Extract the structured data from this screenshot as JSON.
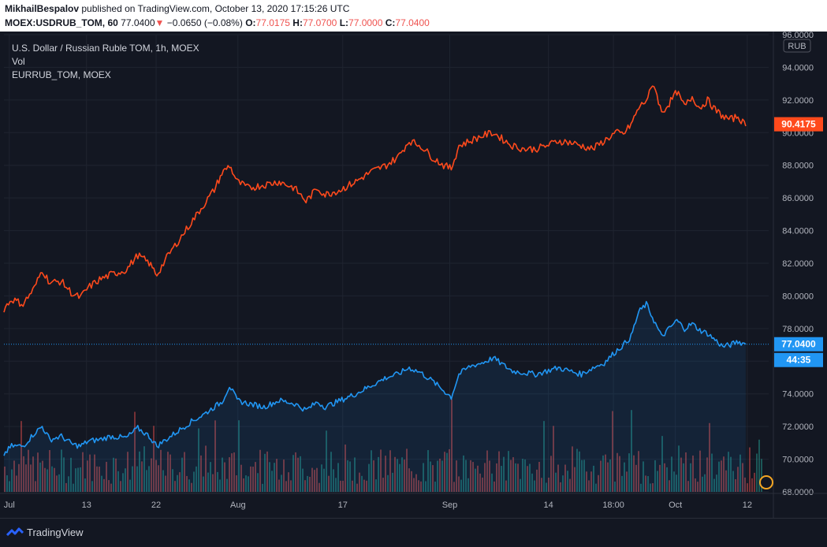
{
  "header": {
    "publisher": "MikhailBespalov",
    "published_text": "published on TradingView.com, October 13, 2020 17:15:26 UTC",
    "symbol": "MOEX:USDRUB_TOM, 60",
    "last": "77.0400",
    "change_arrow": "▼",
    "change": "−0.0650 (−0.08%)",
    "o_label": "O:",
    "o_value": "77.0175",
    "h_label": "H:",
    "h_value": "77.0700",
    "l_label": "L:",
    "l_value": "77.0000",
    "c_label": "C:",
    "c_value": "77.0400"
  },
  "legend": {
    "main": "U.S. Dollar / Russian Ruble TOM, 1h, MOEX",
    "vol": "Vol",
    "compare": "EURRUB_TOM, MOEX"
  },
  "footer": {
    "brand": "TradingView"
  },
  "colors": {
    "eur": "#ff4a1c",
    "usd": "#2196f3",
    "vol_up": "#26a69a",
    "vol_down": "#ef5350",
    "grid": "#1f2430",
    "text": "#b2b5be"
  },
  "chart_data": {
    "type": "line",
    "title": "U.S. Dollar / Russian Ruble TOM, 1h, MOEX",
    "currency_label": "RUB",
    "ylim": [
      68,
      96
    ],
    "y_ticks": [
      "96.0000",
      "94.0000",
      "92.0000",
      "90.0000",
      "88.0000",
      "86.0000",
      "84.0000",
      "82.0000",
      "80.0000",
      "78.0000",
      "76.0000",
      "74.0000",
      "72.0000",
      "70.0000",
      "68.0000"
    ],
    "x_ticks": [
      "Jul",
      "13",
      "22",
      "Aug",
      "17",
      "Sep",
      "14",
      "18:00",
      "Oct",
      "12"
    ],
    "x_tick_pos": [
      0.007,
      0.108,
      0.199,
      0.306,
      0.443,
      0.583,
      0.712,
      0.797,
      0.878,
      0.972
    ],
    "price_labels": {
      "eur": "90.4175",
      "usd": "77.0400",
      "countdown": "44:35"
    },
    "series": [
      {
        "name": "EURRUB_TOM, MOEX",
        "color_key": "eur",
        "x": [
          0,
          0.01,
          0.025,
          0.04,
          0.05,
          0.06,
          0.075,
          0.09,
          0.1,
          0.11,
          0.125,
          0.14,
          0.16,
          0.175,
          0.19,
          0.2,
          0.215,
          0.23,
          0.245,
          0.26,
          0.275,
          0.285,
          0.295,
          0.305,
          0.32,
          0.34,
          0.36,
          0.38,
          0.395,
          0.41,
          0.42,
          0.44,
          0.46,
          0.48,
          0.5,
          0.515,
          0.53,
          0.545,
          0.56,
          0.575,
          0.585,
          0.595,
          0.61,
          0.625,
          0.64,
          0.655,
          0.665,
          0.68,
          0.695,
          0.71,
          0.725,
          0.74,
          0.755,
          0.77,
          0.785,
          0.8,
          0.81,
          0.82,
          0.83,
          0.84,
          0.85,
          0.86,
          0.87,
          0.88,
          0.89,
          0.9,
          0.91,
          0.92,
          0.93,
          0.94,
          0.95,
          0.96,
          0.97
        ],
        "values": [
          79.2,
          79.8,
          79.5,
          80.5,
          81.6,
          80.8,
          80.9,
          80.1,
          79.9,
          80.5,
          81.0,
          81.3,
          81.6,
          82.5,
          82.0,
          81.3,
          82.5,
          83.5,
          84.5,
          85.5,
          86.5,
          87.5,
          88.0,
          87.0,
          86.6,
          86.8,
          87.0,
          86.6,
          85.8,
          86.6,
          86.2,
          86.5,
          87.0,
          87.6,
          88.0,
          88.5,
          89.5,
          89.2,
          88.5,
          88.0,
          87.8,
          89.2,
          89.5,
          89.8,
          90.0,
          89.5,
          89.2,
          89.0,
          89.0,
          89.2,
          89.5,
          89.4,
          89.2,
          89.0,
          89.5,
          90.0,
          89.9,
          90.5,
          91.5,
          92.0,
          93.0,
          91.2,
          91.8,
          92.5,
          91.6,
          92.2,
          91.5,
          92.0,
          91.4,
          91.0,
          90.8,
          91.0,
          90.4
        ]
      },
      {
        "name": "U.S. Dollar / Russian Ruble TOM",
        "color_key": "usd",
        "x": [
          0,
          0.01,
          0.025,
          0.04,
          0.05,
          0.06,
          0.075,
          0.09,
          0.1,
          0.11,
          0.125,
          0.14,
          0.16,
          0.175,
          0.19,
          0.2,
          0.215,
          0.23,
          0.245,
          0.26,
          0.275,
          0.285,
          0.295,
          0.305,
          0.32,
          0.34,
          0.36,
          0.38,
          0.395,
          0.41,
          0.42,
          0.44,
          0.46,
          0.48,
          0.5,
          0.515,
          0.53,
          0.545,
          0.56,
          0.575,
          0.585,
          0.595,
          0.61,
          0.625,
          0.64,
          0.655,
          0.665,
          0.68,
          0.695,
          0.71,
          0.725,
          0.74,
          0.755,
          0.77,
          0.785,
          0.8,
          0.81,
          0.82,
          0.83,
          0.84,
          0.85,
          0.86,
          0.87,
          0.88,
          0.89,
          0.9,
          0.91,
          0.92,
          0.93,
          0.94,
          0.95,
          0.96,
          0.97
        ],
        "values": [
          70.3,
          70.8,
          70.8,
          71.6,
          72.0,
          71.2,
          71.4,
          70.9,
          70.8,
          71.1,
          71.2,
          71.4,
          71.3,
          71.9,
          71.4,
          70.8,
          71.3,
          71.8,
          72.3,
          72.7,
          73.2,
          73.5,
          74.5,
          73.6,
          73.4,
          73.2,
          73.6,
          73.4,
          73.0,
          73.5,
          73.2,
          73.6,
          74.0,
          74.5,
          75.0,
          75.2,
          75.6,
          75.3,
          74.8,
          74.2,
          73.8,
          75.2,
          75.7,
          75.9,
          76.2,
          75.7,
          75.4,
          75.3,
          75.2,
          75.4,
          75.6,
          75.4,
          75.2,
          75.6,
          75.9,
          76.6,
          77.0,
          77.5,
          79.0,
          79.5,
          78.5,
          77.5,
          78.0,
          78.5,
          78.0,
          78.3,
          77.9,
          77.7,
          77.3,
          76.9,
          77.0,
          77.2,
          77.04
        ]
      }
    ]
  }
}
